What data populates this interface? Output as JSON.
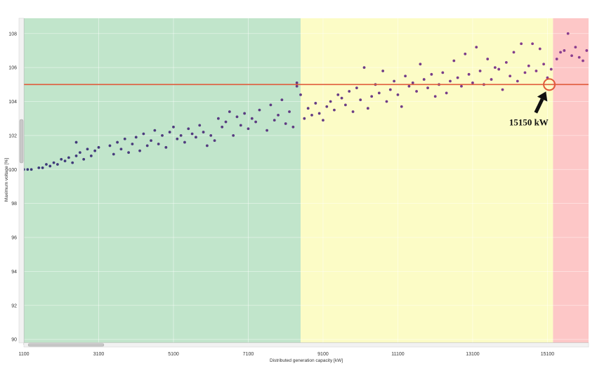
{
  "chart_data": {
    "type": "scatter",
    "xlabel": "Distributed generation capacity [kW]",
    "ylabel": "Maximum voltage [%]",
    "xlim": [
      1100,
      16200
    ],
    "ylim": [
      89.8,
      108.9
    ],
    "x_ticks": [
      1100,
      3100,
      5100,
      7100,
      9100,
      11100,
      13100,
      15100
    ],
    "x_tick_labels": [
      "1100",
      "3100",
      "5100",
      "7100",
      "9100",
      "11100",
      "13100",
      "15100"
    ],
    "y_ticks": [
      90,
      92,
      94,
      96,
      98,
      100,
      102,
      104,
      106,
      108
    ],
    "y_tick_labels": [
      "90",
      "92",
      "94",
      "96",
      "98",
      "100",
      "102",
      "104",
      "106",
      "108"
    ],
    "grid": true,
    "regions": [
      {
        "name": "safe",
        "x_start": 1100,
        "x_end": 8500,
        "color": "#c1e5cb"
      },
      {
        "name": "caution",
        "x_start": 8500,
        "x_end": 15250,
        "color": "#fcfcc6"
      },
      {
        "name": "violation",
        "x_start": 15250,
        "x_end": 16200,
        "color": "#fdc7c7"
      }
    ],
    "threshold": {
      "y": 105,
      "color": "#e05a3a"
    },
    "annotation": {
      "text": "15150 kW",
      "x": 15150,
      "y": 105,
      "text_at": [
        14600,
        102.6
      ]
    },
    "marker_colors": {
      "low": "#3a3a78",
      "high": "#8c3d8f"
    },
    "series": [
      {
        "points": [
          [
            1100,
            100.0
          ],
          [
            1200,
            100.0
          ],
          [
            1300,
            100.0
          ],
          [
            1500,
            100.1
          ],
          [
            1600,
            100.1
          ],
          [
            1700,
            100.3
          ],
          [
            1800,
            100.2
          ],
          [
            1900,
            100.4
          ],
          [
            2000,
            100.3
          ],
          [
            2100,
            100.6
          ],
          [
            2200,
            100.5
          ],
          [
            2300,
            100.7
          ],
          [
            2400,
            100.4
          ],
          [
            2500,
            100.8
          ],
          [
            2500,
            101.6
          ],
          [
            2600,
            101.0
          ],
          [
            2700,
            100.6
          ],
          [
            2800,
            101.2
          ],
          [
            2900,
            100.8
          ],
          [
            3000,
            101.1
          ],
          [
            3100,
            101.3
          ],
          [
            3400,
            101.4
          ],
          [
            3500,
            100.9
          ],
          [
            3600,
            101.6
          ],
          [
            3700,
            101.2
          ],
          [
            3800,
            101.8
          ],
          [
            3900,
            101.0
          ],
          [
            4000,
            101.5
          ],
          [
            4100,
            101.9
          ],
          [
            4200,
            101.1
          ],
          [
            4300,
            102.1
          ],
          [
            4400,
            101.4
          ],
          [
            4500,
            101.7
          ],
          [
            4600,
            102.3
          ],
          [
            4700,
            101.5
          ],
          [
            4800,
            102.0
          ],
          [
            4900,
            101.3
          ],
          [
            5000,
            102.2
          ],
          [
            5100,
            102.5
          ],
          [
            5200,
            101.8
          ],
          [
            5300,
            102.0
          ],
          [
            5400,
            101.6
          ],
          [
            5500,
            102.4
          ],
          [
            5600,
            102.1
          ],
          [
            5700,
            101.9
          ],
          [
            5800,
            102.6
          ],
          [
            5900,
            102.2
          ],
          [
            6000,
            101.4
          ],
          [
            6100,
            102.0
          ],
          [
            6200,
            101.7
          ],
          [
            6300,
            103.0
          ],
          [
            6400,
            102.5
          ],
          [
            6500,
            102.8
          ],
          [
            6600,
            103.4
          ],
          [
            6700,
            102.0
          ],
          [
            6800,
            103.1
          ],
          [
            6900,
            102.6
          ],
          [
            7000,
            103.3
          ],
          [
            7100,
            102.4
          ],
          [
            7200,
            103.0
          ],
          [
            7300,
            102.8
          ],
          [
            7400,
            103.5
          ],
          [
            7600,
            102.3
          ],
          [
            7700,
            103.8
          ],
          [
            7800,
            102.9
          ],
          [
            7900,
            103.2
          ],
          [
            8000,
            104.1
          ],
          [
            8100,
            102.7
          ],
          [
            8200,
            103.4
          ],
          [
            8300,
            102.5
          ],
          [
            8400,
            104.9
          ],
          [
            8400,
            105.1
          ],
          [
            8500,
            104.4
          ],
          [
            8600,
            103.0
          ],
          [
            8700,
            103.6
          ],
          [
            8800,
            103.2
          ],
          [
            8900,
            103.9
          ],
          [
            9000,
            103.3
          ],
          [
            9100,
            102.9
          ],
          [
            9200,
            103.7
          ],
          [
            9300,
            104.0
          ],
          [
            9400,
            103.5
          ],
          [
            9500,
            104.4
          ],
          [
            9600,
            104.2
          ],
          [
            9700,
            103.8
          ],
          [
            9800,
            104.6
          ],
          [
            9900,
            103.4
          ],
          [
            10000,
            104.8
          ],
          [
            10100,
            104.1
          ],
          [
            10200,
            106.0
          ],
          [
            10300,
            103.6
          ],
          [
            10400,
            104.3
          ],
          [
            10500,
            105.0
          ],
          [
            10600,
            104.5
          ],
          [
            10700,
            105.8
          ],
          [
            10800,
            104.0
          ],
          [
            10900,
            104.7
          ],
          [
            11000,
            105.2
          ],
          [
            11100,
            104.4
          ],
          [
            11200,
            103.7
          ],
          [
            11300,
            105.5
          ],
          [
            11400,
            104.9
          ],
          [
            11500,
            105.1
          ],
          [
            11600,
            104.6
          ],
          [
            11700,
            106.2
          ],
          [
            11800,
            105.3
          ],
          [
            11900,
            104.8
          ],
          [
            12000,
            105.6
          ],
          [
            12100,
            104.3
          ],
          [
            12200,
            105.0
          ],
          [
            12300,
            105.7
          ],
          [
            12400,
            104.5
          ],
          [
            12500,
            105.2
          ],
          [
            12600,
            106.4
          ],
          [
            12700,
            105.4
          ],
          [
            12800,
            104.9
          ],
          [
            12900,
            106.8
          ],
          [
            13000,
            105.6
          ],
          [
            13100,
            105.1
          ],
          [
            13200,
            107.2
          ],
          [
            13300,
            105.8
          ],
          [
            13400,
            105.0
          ],
          [
            13500,
            106.5
          ],
          [
            13600,
            105.3
          ],
          [
            13700,
            106.0
          ],
          [
            13800,
            105.9
          ],
          [
            13900,
            104.7
          ],
          [
            14000,
            106.3
          ],
          [
            14100,
            105.5
          ],
          [
            14200,
            106.9
          ],
          [
            14300,
            105.2
          ],
          [
            14400,
            107.4
          ],
          [
            14500,
            105.7
          ],
          [
            14600,
            106.1
          ],
          [
            14700,
            107.4
          ],
          [
            14800,
            105.8
          ],
          [
            14900,
            107.1
          ],
          [
            15000,
            106.2
          ],
          [
            15100,
            105.4
          ],
          [
            15200,
            105.9
          ],
          [
            15350,
            106.5
          ],
          [
            15450,
            106.9
          ],
          [
            15550,
            107.0
          ],
          [
            15650,
            108.0
          ],
          [
            15750,
            106.7
          ],
          [
            15850,
            107.2
          ],
          [
            15950,
            106.6
          ],
          [
            16050,
            106.4
          ],
          [
            16150,
            107.0
          ]
        ]
      }
    ]
  }
}
